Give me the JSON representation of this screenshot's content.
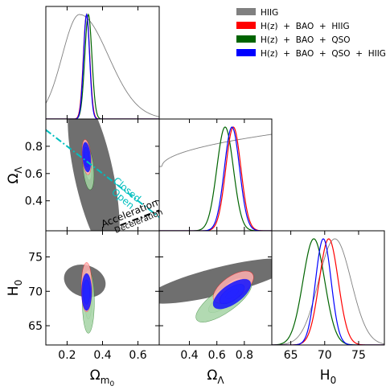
{
  "chart_data": {
    "type": "corner",
    "parameters": [
      {
        "id": "om",
        "label": "Ω",
        "sub": "m",
        "subsub": "0",
        "range": [
          0.08,
          0.72
        ],
        "ticks": [
          0.2,
          0.4,
          0.6
        ],
        "tick_labels": [
          "0.2",
          "0.4",
          "0.6"
        ]
      },
      {
        "id": "ol",
        "label": "Ω",
        "sub": "Λ",
        "range": [
          0.18,
          1.0
        ],
        "ticks": [
          0.4,
          0.6,
          0.8
        ],
        "tick_labels": [
          "0.4",
          "0.6",
          "0.8"
        ]
      },
      {
        "id": "h0",
        "label": "H",
        "sub": "0",
        "range": [
          62.2,
          78.8
        ],
        "ticks": [
          65,
          70,
          75
        ],
        "tick_labels": [
          "65",
          "70",
          "75"
        ]
      }
    ],
    "legend": {
      "placement": "top-right",
      "entries": [
        {
          "label": "HIIG",
          "color": "#808080"
        },
        {
          "label": "H(z)  +  BAO  +  HIIG",
          "color": "#ff0000"
        },
        {
          "label": "H(z)  +  BAO  +  QSO",
          "color": "#006400"
        },
        {
          "label": "H(z)  +  BAO  +  QSO  +  HIIG",
          "color": "#0000ff"
        }
      ]
    },
    "series": [
      {
        "key": "hiig",
        "color": "#808080",
        "fill_levels": [
          "#6f6f6f",
          "#bdbdbd",
          "#e6e6e6"
        ],
        "om": {
          "mean": 0.28,
          "sd": 0.13,
          "skew": "right",
          "peak_x": 0.27
        },
        "ol": {
          "shape": "rising",
          "value_at_0.2": 0.62,
          "value_at_1.0": 0.93
        },
        "h0": {
          "mean": 71.5,
          "sd": 2.4
        },
        "contours": {
          "om_ol": {
            "cx": 0.35,
            "cy": 0.6,
            "rx": 0.11,
            "ry": 0.62,
            "rot_deg": 12
          },
          "om_h0": {
            "cx": 0.3,
            "cy": 71.5,
            "rx": 0.12,
            "ry": 2.3,
            "rot_deg": -18
          },
          "ol_h0": {
            "cx": 0.62,
            "cy": 71.5,
            "rx": 0.55,
            "ry": 2.0,
            "rot_deg": 14
          }
        }
      },
      {
        "key": "hz_bao_hiig",
        "color": "#ff0000",
        "fill_levels": [
          "#ffb0b0",
          "#ffe0e0"
        ],
        "om": {
          "mean": 0.31,
          "sd": 0.018
        },
        "ol": {
          "mean": 0.72,
          "sd": 0.055
        },
        "h0": {
          "mean": 70.6,
          "sd": 1.4
        },
        "contours": {
          "om_ol": {
            "cx": 0.31,
            "cy": 0.72,
            "rx": 0.025,
            "ry": 0.13,
            "rot_deg": 5
          },
          "om_h0": {
            "cx": 0.31,
            "cy": 70.6,
            "rx": 0.03,
            "ry": 3.6,
            "rot_deg": 0
          },
          "ol_h0": {
            "cx": 0.72,
            "cy": 70.6,
            "rx": 0.17,
            "ry": 1.6,
            "rot_deg": 35
          }
        }
      },
      {
        "key": "hz_bao_qso",
        "color": "#006400",
        "fill_levels": [
          "#a4d3a4",
          "#d8eed8"
        ],
        "om": {
          "mean": 0.32,
          "sd": 0.02
        },
        "ol": {
          "mean": 0.66,
          "sd": 0.06
        },
        "h0": {
          "mean": 68.4,
          "sd": 1.6
        },
        "contours": {
          "om_ol": {
            "cx": 0.32,
            "cy": 0.64,
            "rx": 0.03,
            "ry": 0.16,
            "rot_deg": 5
          },
          "om_h0": {
            "cx": 0.32,
            "cy": 68.5,
            "rx": 0.034,
            "ry": 4.6,
            "rot_deg": 0
          },
          "ol_h0": {
            "cx": 0.65,
            "cy": 68.6,
            "rx": 0.24,
            "ry": 1.7,
            "rot_deg": 35
          }
        }
      },
      {
        "key": "hz_bao_qso_hiig",
        "color": "#0000ff",
        "fill_levels": [
          "#1010ff",
          "#8c8cff",
          "#c8c8ff"
        ],
        "om": {
          "mean": 0.31,
          "sd": 0.017
        },
        "ol": {
          "mean": 0.71,
          "sd": 0.055
        },
        "h0": {
          "mean": 69.8,
          "sd": 1.15
        },
        "contours": {
          "om_ol": {
            "cx": 0.31,
            "cy": 0.72,
            "rx": 0.023,
            "ry": 0.11,
            "rot_deg": 5
          },
          "om_h0": {
            "cx": 0.31,
            "cy": 69.9,
            "rx": 0.028,
            "ry": 2.7,
            "rot_deg": 0
          },
          "ol_h0": {
            "cx": 0.71,
            "cy": 69.6,
            "rx": 0.16,
            "ry": 1.4,
            "rot_deg": 35
          }
        }
      }
    ],
    "overlay_lines": [
      {
        "panel": "om_ol",
        "label_a": "Closed",
        "label_b": "Open",
        "color": "#00bfbf",
        "style": "dashdot",
        "from": [
          0.08,
          0.92
        ],
        "to": [
          0.72,
          0.28
        ]
      },
      {
        "panel": "om_ol",
        "label_a": "Acceleration",
        "label_b": "Deceleration",
        "color": "#000000",
        "style": "dashdot",
        "from": [
          0.5,
          0.22
        ],
        "to": [
          0.72,
          0.33
        ]
      }
    ],
    "grid": false
  }
}
